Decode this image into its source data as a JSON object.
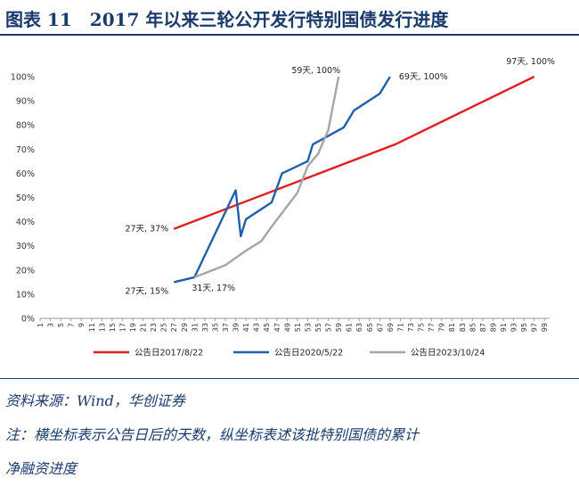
{
  "figure": {
    "title": "图表 11　2017 年以来三轮公开发行特别国债发行进度"
  },
  "notes": {
    "source": "资料来源：Wind，华创证券",
    "note_line1": "注：横坐标表示公告日后的天数，纵坐标表述该批特别国债的累计",
    "note_line2": "净融资进度"
  },
  "colors": {
    "s2017": "#e02020",
    "s2020": "#1f5fae",
    "s2023": "#a6a6a6",
    "heading": "#1a3a6b"
  },
  "chart_data": {
    "type": "line",
    "title": "",
    "xlabel": "",
    "ylabel": "",
    "x_ticks": [
      1,
      3,
      5,
      7,
      9,
      11,
      13,
      15,
      17,
      19,
      21,
      23,
      25,
      27,
      29,
      31,
      33,
      35,
      37,
      39,
      41,
      43,
      45,
      47,
      49,
      51,
      53,
      55,
      57,
      59,
      61,
      63,
      65,
      67,
      69,
      71,
      73,
      75,
      77,
      79,
      81,
      83,
      85,
      87,
      89,
      91,
      93,
      95,
      97,
      99
    ],
    "y_ticks": [
      "0%",
      "10%",
      "20%",
      "30%",
      "40%",
      "50%",
      "60%",
      "70%",
      "80%",
      "90%",
      "100%"
    ],
    "xlim": [
      1,
      100
    ],
    "ylim": [
      0,
      100
    ],
    "grid": false,
    "legend_position": "bottom",
    "series": [
      {
        "name": "公告日2017/8/22",
        "color_key": "s2017",
        "x": [
          27,
          70,
          97
        ],
        "y": [
          37,
          72,
          100
        ]
      },
      {
        "name": "公告日2020/5/22",
        "color_key": "s2020",
        "x": [
          27,
          31,
          39,
          40,
          41,
          46,
          48,
          53,
          54,
          60,
          62,
          67,
          69
        ],
        "y": [
          15,
          17,
          53,
          34,
          41,
          48,
          60,
          65,
          72,
          79,
          86,
          93,
          100
        ]
      },
      {
        "name": "公告日2023/10/24",
        "color_key": "s2023",
        "x": [
          31,
          37,
          41,
          44,
          46,
          51,
          53,
          55,
          57,
          59
        ],
        "y": [
          17,
          22,
          28,
          32,
          38,
          52,
          63,
          68,
          78,
          100
        ]
      }
    ],
    "annotations": [
      {
        "text": "27天, 37%",
        "x": 27,
        "y": 37,
        "anchor": "end",
        "dx": -6,
        "dy": 3
      },
      {
        "text": "27天, 15%",
        "x": 27,
        "y": 15,
        "anchor": "end",
        "dx": -6,
        "dy": 13
      },
      {
        "text": "31天, 17%",
        "x": 31,
        "y": 17,
        "anchor": "start",
        "dx": -3,
        "dy": 15
      },
      {
        "text": "59天, 100%",
        "x": 59,
        "y": 100,
        "anchor": "end",
        "dx": 2,
        "dy": -4
      },
      {
        "text": "69天, 100%",
        "x": 69,
        "y": 100,
        "anchor": "start",
        "dx": 10,
        "dy": 3
      },
      {
        "text": "97天, 100%",
        "x": 97,
        "y": 100,
        "anchor": "middle",
        "dx": -4,
        "dy": -14
      }
    ]
  }
}
